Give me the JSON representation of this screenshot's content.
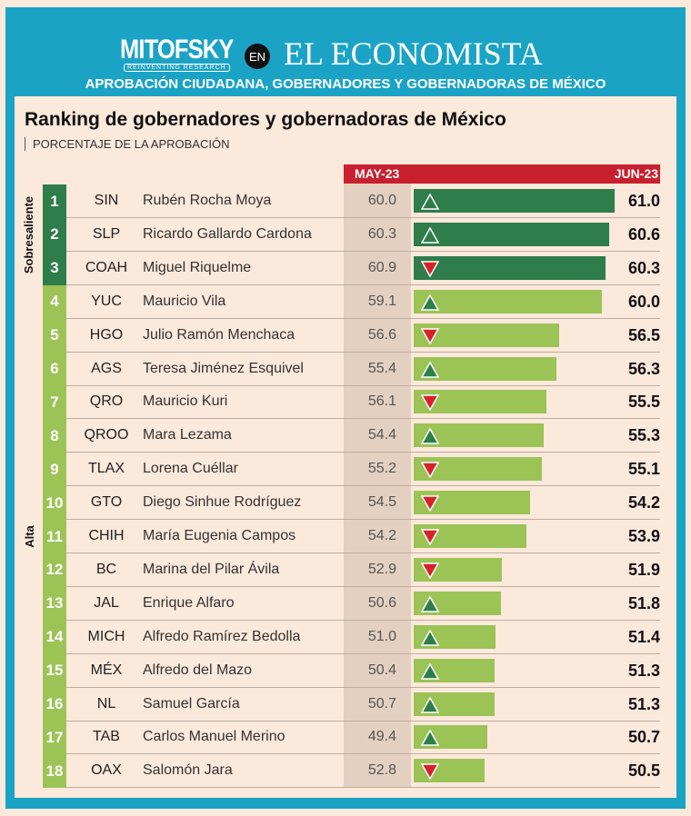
{
  "header": {
    "logo": "MITOFSKY",
    "logo_tagline": "REINVENTING RESEARCH",
    "en": "EN",
    "publication": "EL ECONOMISTA",
    "subtitle": "APROBACIÓN CIUDADANA, GOBERNADORES Y GOBERNADORAS DE MÉXICO"
  },
  "chart_data": {
    "type": "bar",
    "title": "Ranking de gobernadores y gobernadoras de México",
    "subtitle": "PORCENTAJE DE LA APROBACIÓN",
    "columns": {
      "prev": "MAY-23",
      "curr": "JUN-23"
    },
    "groups": [
      {
        "label": "Sobresaliente",
        "color": "#2e7d4a"
      },
      {
        "label": "Alta",
        "color": "#9cc356"
      }
    ],
    "colors": {
      "up": "#2e7d4a",
      "down": "#d6232b",
      "header": "#c8202e"
    },
    "rows": [
      {
        "rank": "1",
        "state": "SIN",
        "name": "Rubén Rocha Moya",
        "may": "60.0",
        "jun": "61.0",
        "trend": "up",
        "group": 0
      },
      {
        "rank": "2",
        "state": "SLP",
        "name": "Ricardo Gallardo Cardona",
        "may": "60.3",
        "jun": "60.6",
        "trend": "up",
        "group": 0
      },
      {
        "rank": "3",
        "state": "COAH",
        "name": "Miguel Riquelme",
        "may": "60.9",
        "jun": "60.3",
        "trend": "down",
        "group": 0
      },
      {
        "rank": "4",
        "state": "YUC",
        "name": "Mauricio Vila",
        "may": "59.1",
        "jun": "60.0",
        "trend": "up",
        "group": 1
      },
      {
        "rank": "5",
        "state": "HGO",
        "name": "Julio Ramón Menchaca",
        "may": "56.6",
        "jun": "56.5",
        "trend": "down",
        "group": 1
      },
      {
        "rank": "6",
        "state": "AGS",
        "name": "Teresa Jiménez Esquivel",
        "may": "55.4",
        "jun": "56.3",
        "trend": "up",
        "group": 1
      },
      {
        "rank": "7",
        "state": "QRO",
        "name": "Mauricio Kuri",
        "may": "56.1",
        "jun": "55.5",
        "trend": "down",
        "group": 1
      },
      {
        "rank": "8",
        "state": "QROO",
        "name": "Mara Lezama",
        "may": "54.4",
        "jun": "55.3",
        "trend": "up",
        "group": 1
      },
      {
        "rank": "9",
        "state": "TLAX",
        "name": "Lorena Cuéllar",
        "may": "55.2",
        "jun": "55.1",
        "trend": "down",
        "group": 1
      },
      {
        "rank": "10",
        "state": "GTO",
        "name": "Diego Sinhue Rodríguez",
        "may": "54.5",
        "jun": "54.2",
        "trend": "down",
        "group": 1
      },
      {
        "rank": "11",
        "state": "CHIH",
        "name": "María Eugenia Campos",
        "may": "54.2",
        "jun": "53.9",
        "trend": "down",
        "group": 1
      },
      {
        "rank": "12",
        "state": "BC",
        "name": "Marina del Pilar Ávila",
        "may": "52.9",
        "jun": "51.9",
        "trend": "down",
        "group": 1
      },
      {
        "rank": "13",
        "state": "JAL",
        "name": "Enrique Alfaro",
        "may": "50.6",
        "jun": "51.8",
        "trend": "up",
        "group": 1
      },
      {
        "rank": "14",
        "state": "MICH",
        "name": "Alfredo Ramírez Bedolla",
        "may": "51.0",
        "jun": "51.4",
        "trend": "up",
        "group": 1
      },
      {
        "rank": "15",
        "state": "MÉX",
        "name": "Alfredo del Mazo",
        "may": "50.4",
        "jun": "51.3",
        "trend": "up",
        "group": 1
      },
      {
        "rank": "16",
        "state": "NL",
        "name": "Samuel García",
        "may": "50.7",
        "jun": "51.3",
        "trend": "up",
        "group": 1
      },
      {
        "rank": "17",
        "state": "TAB",
        "name": "Carlos Manuel Merino",
        "may": "49.4",
        "jun": "50.7",
        "trend": "up",
        "group": 1
      },
      {
        "rank": "18",
        "state": "OAX",
        "name": "Salomón Jara",
        "may": "52.8",
        "jun": "50.5",
        "trend": "down",
        "group": 1
      }
    ]
  }
}
